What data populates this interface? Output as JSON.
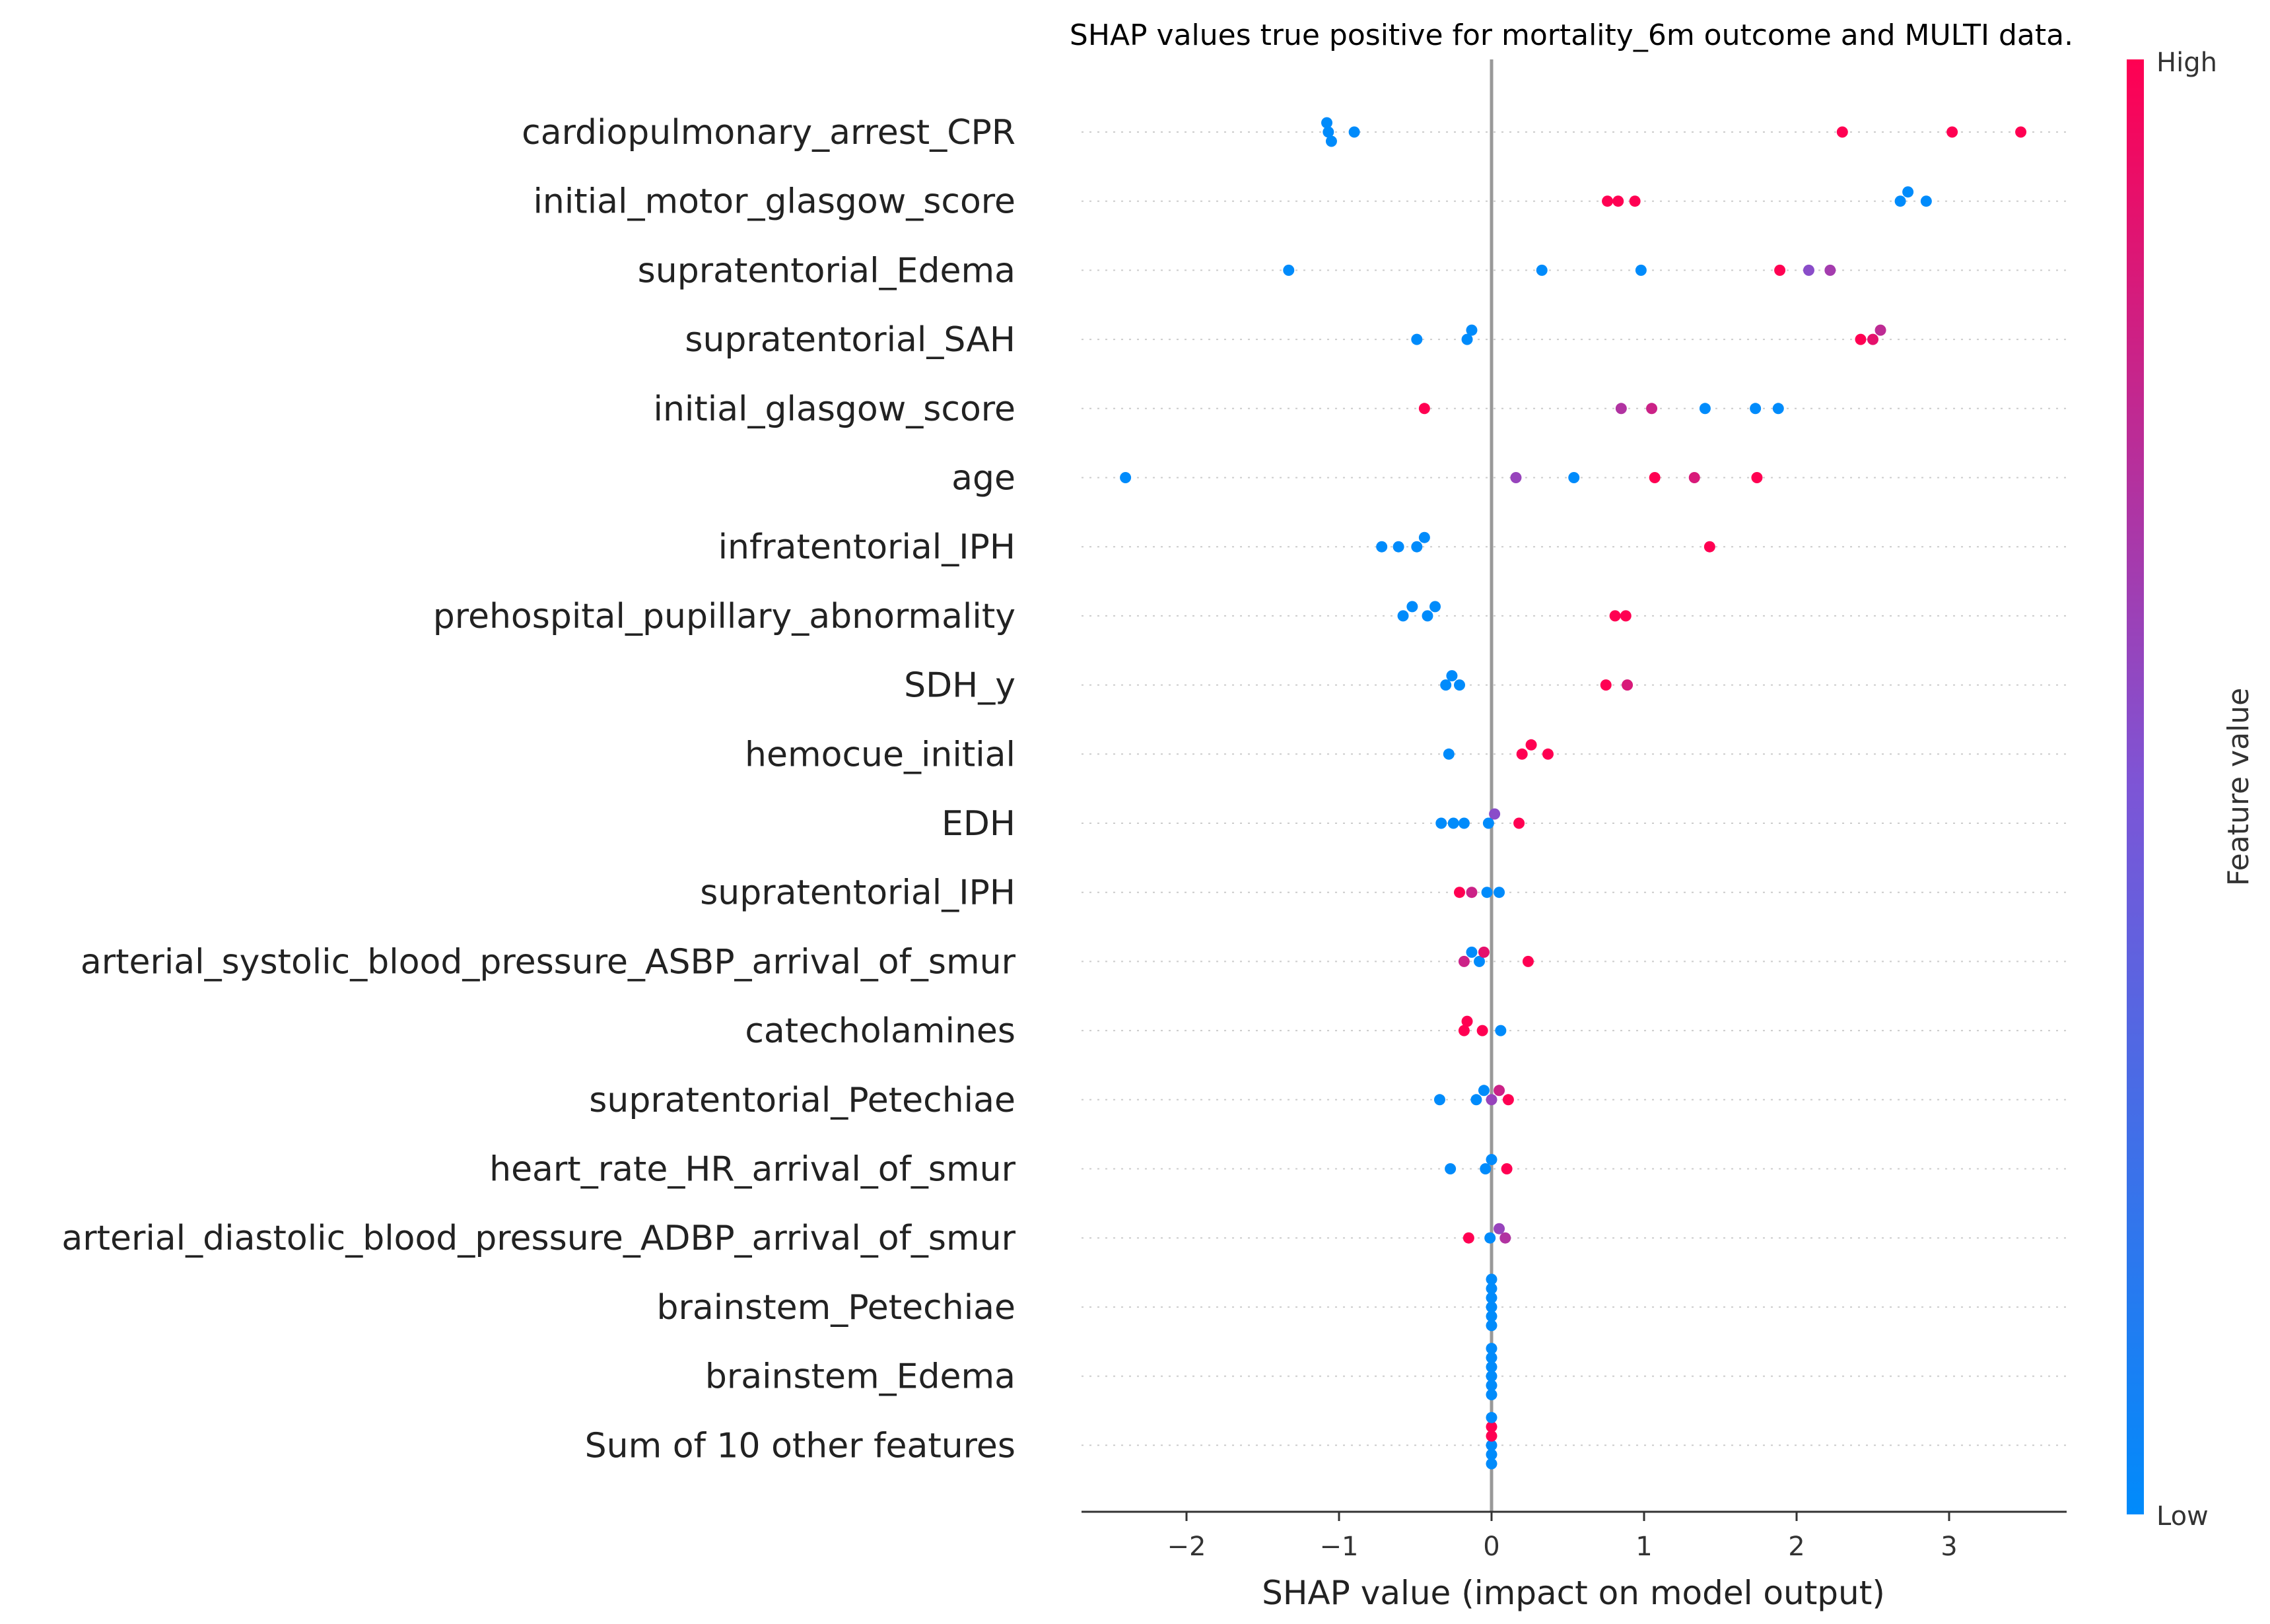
{
  "chart_data": {
    "type": "scatter",
    "subtype": "shap_beeswarm",
    "title": "SHAP values true positive for mortality_6m outcome and MULTI data.",
    "xlabel": "SHAP value (impact on model output)",
    "xlim": [
      -2.7,
      3.8
    ],
    "xticks": [
      -2,
      -1,
      0,
      1,
      2,
      3
    ],
    "xtick_labels": [
      "−2",
      "−1",
      "0",
      "1",
      "2",
      "3"
    ],
    "colorbar": {
      "label": "Feature value",
      "high_label": "High",
      "low_label": "Low",
      "low_color": "#008bfb",
      "mid_color": "#7d55d6",
      "high_color": "#ff0052"
    },
    "grid": false,
    "features": [
      {
        "name": "cardiopulmonary_arrest_CPR",
        "points": [
          [
            -1.07,
            0.0
          ],
          [
            -1.08,
            0.0
          ],
          [
            -0.9,
            0.0
          ],
          [
            2.3,
            1.0
          ],
          [
            3.02,
            1.0
          ],
          [
            3.47,
            1.0
          ],
          [
            -1.05,
            0.0
          ]
        ]
      },
      {
        "name": "initial_motor_glasgow_score",
        "points": [
          [
            0.76,
            1.0
          ],
          [
            0.83,
            1.0
          ],
          [
            0.94,
            1.0
          ],
          [
            2.68,
            0.0
          ],
          [
            2.73,
            0.0
          ],
          [
            2.85,
            0.0
          ]
        ]
      },
      {
        "name": "supratentorial_Edema",
        "points": [
          [
            -1.33,
            0.0
          ],
          [
            0.33,
            0.0
          ],
          [
            0.98,
            0.0
          ],
          [
            1.89,
            1.0
          ],
          [
            2.08,
            0.55
          ],
          [
            2.22,
            0.65
          ]
        ]
      },
      {
        "name": "supratentorial_SAH",
        "points": [
          [
            -0.49,
            0.0
          ],
          [
            -0.16,
            0.0
          ],
          [
            -0.13,
            0.0
          ],
          [
            2.42,
            1.0
          ],
          [
            2.5,
            0.9
          ],
          [
            2.55,
            0.75
          ]
        ]
      },
      {
        "name": "initial_glasgow_score",
        "points": [
          [
            -0.44,
            1.0
          ],
          [
            0.85,
            0.7
          ],
          [
            1.05,
            0.8
          ],
          [
            1.4,
            0.0
          ],
          [
            1.73,
            0.0
          ],
          [
            1.88,
            0.0
          ]
        ]
      },
      {
        "name": "age",
        "points": [
          [
            -2.4,
            0.0
          ],
          [
            0.16,
            0.6
          ],
          [
            0.54,
            0.0
          ],
          [
            1.07,
            1.0
          ],
          [
            1.33,
            0.85
          ],
          [
            1.74,
            1.0
          ]
        ]
      },
      {
        "name": "infratentorial_IPH",
        "points": [
          [
            -0.72,
            0.0
          ],
          [
            -0.61,
            0.0
          ],
          [
            -0.49,
            0.0
          ],
          [
            -0.44,
            0.0
          ],
          [
            1.43,
            1.0
          ]
        ]
      },
      {
        "name": "prehospital_pupillary_abnormality",
        "points": [
          [
            -0.58,
            0.0
          ],
          [
            -0.52,
            0.0
          ],
          [
            -0.42,
            0.0
          ],
          [
            -0.37,
            0.0
          ],
          [
            0.81,
            1.0
          ],
          [
            0.88,
            1.0
          ]
        ]
      },
      {
        "name": "SDH_y",
        "points": [
          [
            -0.3,
            0.0
          ],
          [
            -0.26,
            0.0
          ],
          [
            -0.21,
            0.0
          ],
          [
            0.75,
            1.0
          ],
          [
            0.89,
            0.85
          ]
        ]
      },
      {
        "name": "hemocue_initial",
        "points": [
          [
            -0.28,
            0.0
          ],
          [
            0.2,
            1.0
          ],
          [
            0.26,
            1.0
          ],
          [
            0.37,
            1.0
          ]
        ]
      },
      {
        "name": "EDH",
        "points": [
          [
            -0.33,
            0.0
          ],
          [
            -0.25,
            0.0
          ],
          [
            -0.18,
            0.0
          ],
          [
            -0.02,
            0.0
          ],
          [
            0.02,
            0.55
          ],
          [
            0.18,
            1.0
          ]
        ]
      },
      {
        "name": "supratentorial_IPH",
        "points": [
          [
            -0.21,
            1.0
          ],
          [
            -0.13,
            0.8
          ],
          [
            -0.03,
            0.0
          ],
          [
            0.05,
            0.0
          ]
        ]
      },
      {
        "name": "arterial_systolic_blood_pressure_ASBP_arrival_of_smur",
        "points": [
          [
            -0.18,
            0.8
          ],
          [
            -0.13,
            0.0
          ],
          [
            -0.08,
            0.0
          ],
          [
            -0.05,
            0.9
          ],
          [
            0.24,
            1.0
          ]
        ]
      },
      {
        "name": "catecholamines",
        "points": [
          [
            -0.18,
            1.0
          ],
          [
            -0.16,
            1.0
          ],
          [
            -0.06,
            1.0
          ],
          [
            0.06,
            0.0
          ]
        ]
      },
      {
        "name": "supratentorial_Petechiae",
        "points": [
          [
            -0.34,
            0.0
          ],
          [
            -0.1,
            0.0
          ],
          [
            0.0,
            0.6
          ],
          [
            0.05,
            0.8
          ],
          [
            0.11,
            1.0
          ],
          [
            -0.05,
            0.0
          ]
        ]
      },
      {
        "name": "heart_rate_HR_arrival_of_smur",
        "points": [
          [
            -0.27,
            0.0
          ],
          [
            -0.04,
            0.0
          ],
          [
            0.0,
            0.0
          ],
          [
            0.1,
            1.0
          ]
        ]
      },
      {
        "name": "arterial_diastolic_blood_pressure_ADBP_arrival_of_smur",
        "points": [
          [
            -0.15,
            1.0
          ],
          [
            -0.01,
            0.0
          ],
          [
            0.05,
            0.6
          ],
          [
            0.09,
            0.7
          ]
        ]
      },
      {
        "name": "brainstem_Petechiae",
        "points": [
          [
            0.0,
            0.0
          ],
          [
            0.0,
            0.0
          ],
          [
            0.0,
            0.0
          ],
          [
            0.0,
            0.0
          ],
          [
            0.0,
            0.0
          ],
          [
            0.0,
            0.0
          ]
        ]
      },
      {
        "name": "brainstem_Edema",
        "points": [
          [
            0.0,
            0.0
          ],
          [
            0.0,
            0.0
          ],
          [
            0.0,
            0.0
          ],
          [
            0.0,
            0.0
          ],
          [
            0.0,
            0.0
          ],
          [
            0.0,
            0.0
          ]
        ]
      },
      {
        "name": "Sum of 10 other features",
        "points": [
          [
            0.0,
            0.0
          ],
          [
            0.0,
            1.0
          ],
          [
            0.0,
            0.0
          ],
          [
            0.0,
            1.0
          ],
          [
            0.0,
            0.0
          ],
          [
            0.0,
            0.0
          ]
        ]
      }
    ]
  }
}
